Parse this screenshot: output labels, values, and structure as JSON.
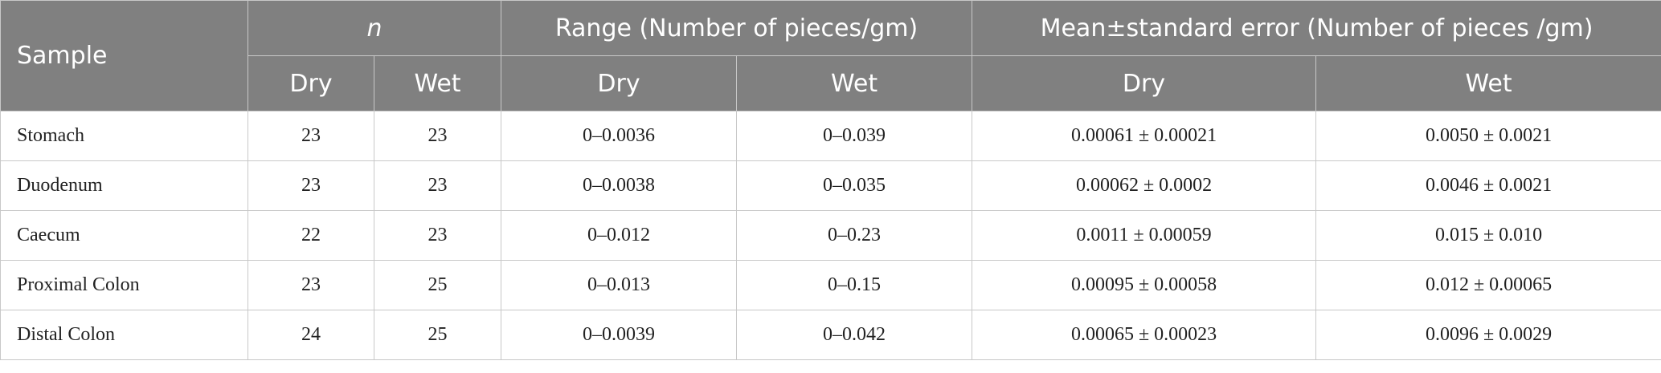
{
  "header": {
    "top": [
      "Sample",
      "n",
      "Range (Number of pieces/gm)",
      "Mean±standard error (Number of pieces /gm)"
    ],
    "sub": [
      "Dry",
      "Wet",
      "Dry",
      "Wet",
      "Dry",
      "Wet"
    ]
  },
  "table": {
    "rows": [
      [
        "Stomach",
        "23",
        "23",
        "0–0.0036",
        "0–0.039",
        "0.00061 ± 0.00021",
        "0.0050 ± 0.0021"
      ],
      [
        "Duodenum",
        "23",
        "23",
        "0–0.0038",
        "0–0.035",
        "0.00062 ± 0.0002",
        "0.0046 ± 0.0021"
      ],
      [
        "Caecum",
        "22",
        "23",
        "0–0.012",
        "0–0.23",
        "0.0011 ± 0.00059",
        "0.015 ± 0.010"
      ],
      [
        "Proximal Colon",
        "23",
        "25",
        "0–0.013",
        "0–0.15",
        "0.00095 ± 0.00058",
        "0.012 ± 0.00065"
      ],
      [
        "Distal Colon",
        "24",
        "25",
        "0–0.0039",
        "0–0.042",
        "0.00065 ± 0.00023",
        "0.0096 ± 0.0029"
      ]
    ]
  }
}
